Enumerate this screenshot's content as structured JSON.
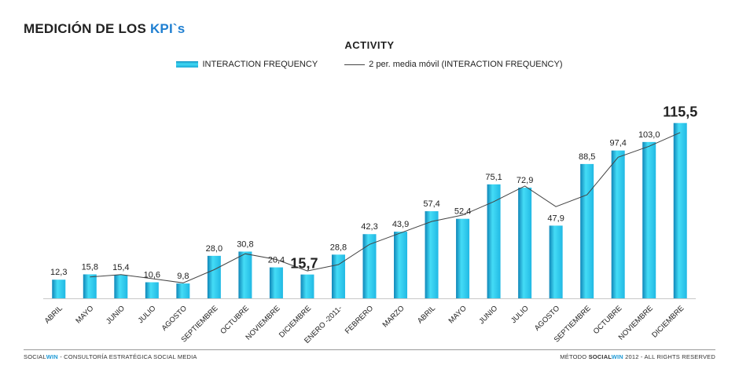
{
  "header": {
    "title_prefix": "MEDICIÓN DE LOS ",
    "title_accent": "KPI`s"
  },
  "footer": {
    "left_brand_a": "SOCIAL",
    "left_brand_b": "WIN",
    "left_text": " - CONSULTORÍA ESTRATÉGICA SOCIAL MEDIA",
    "right_text_a": "MÉTODO ",
    "right_brand_a": "SOCIAL",
    "right_brand_b": "WIN",
    "right_text_b": " 2012 - ALL RIGHTS RESERVED"
  },
  "colors": {
    "bar_light": "#44dcf6",
    "bar_mid": "#21b9e4",
    "bar_dark": "#0f86b8",
    "line": "#444444",
    "accent": "#1f7fd1"
  },
  "chart_data": {
    "type": "bar",
    "title": "ACTIVITY",
    "legend_position": "top",
    "grid": false,
    "ylim": [
      0,
      120
    ],
    "categories": [
      "ABRIL",
      "MAYO",
      "JUNIO",
      "JULIO",
      "AGOSTO",
      "SEPTIEMBRE",
      "OCTUBRE",
      "NOVIEMBRE",
      "DICIEMBRE",
      "ENERO -2011-",
      "FEBRERO",
      "MARZO",
      "ABRIL",
      "MAYO",
      "JUNIO",
      "JULIO",
      "AGOSTO",
      "SEPTIEMBRE",
      "OCTUBRE",
      "NOVIEMBRE",
      "DICIEMBRE"
    ],
    "data_labels": [
      "12,3",
      "15,8",
      "15,4",
      "10,6",
      "9,8",
      "28,0",
      "30,8",
      "20,4",
      "15,7",
      "28,8",
      "42,3",
      "43,9",
      "57,4",
      "52,4",
      "75,1",
      "72,9",
      "47,9",
      "88,5",
      "97,4",
      "103,0",
      "115,5"
    ],
    "highlighted_labels": [
      8,
      20
    ],
    "series": [
      {
        "name": "INTERACTION FREQUENCY",
        "type": "bar",
        "values": [
          12.3,
          15.8,
          15.4,
          10.6,
          9.8,
          28.0,
          30.8,
          20.4,
          15.7,
          28.8,
          42.3,
          43.9,
          57.4,
          52.4,
          75.1,
          72.9,
          47.9,
          88.5,
          97.4,
          103.0,
          115.5
        ]
      },
      {
        "name": "2 per. media móvil (INTERACTION FREQUENCY)",
        "type": "line",
        "values": [
          null,
          14.05,
          15.6,
          13.0,
          10.2,
          18.9,
          29.4,
          25.6,
          18.05,
          22.25,
          35.55,
          43.1,
          50.65,
          54.9,
          63.75,
          74.0,
          60.4,
          68.2,
          92.95,
          100.2,
          109.25
        ]
      }
    ]
  }
}
